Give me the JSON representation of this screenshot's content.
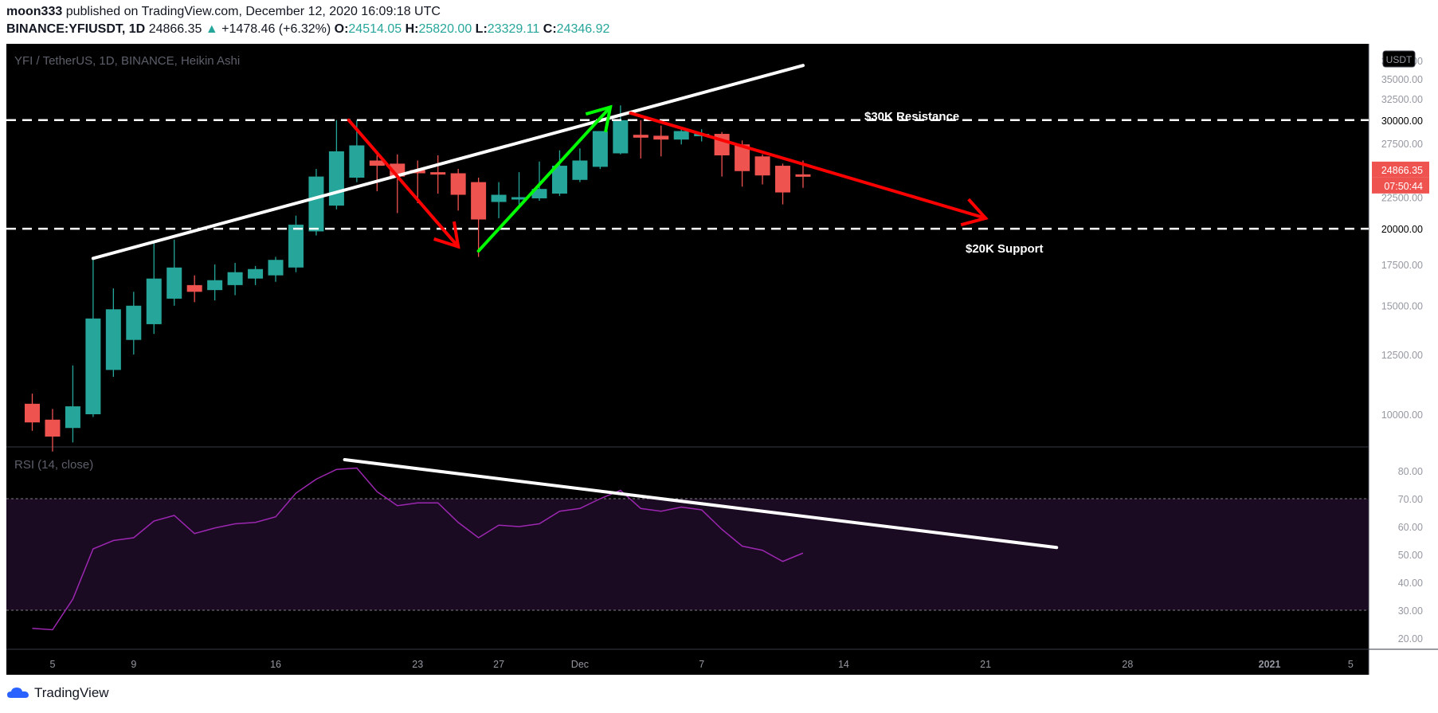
{
  "header": {
    "author": "moon333",
    "published_text": "published on TradingView.com, December 12, 2020 16:09:18 UTC",
    "symbol": "BINANCE:YFIUSDT, 1D",
    "last": "24866.35",
    "change": "+1478.46 (+6.32%)",
    "o_label": "O:",
    "o_val": "24514.05",
    "h_label": "H:",
    "h_val": "25820.00",
    "l_label": "L:",
    "l_val": "23329.11",
    "c_label": "C:",
    "c_val": "24346.92"
  },
  "footer": {
    "brand": "TradingView"
  },
  "colors": {
    "up": "#26a69a",
    "down": "#ef5350",
    "background": "#000000",
    "rsi_line": "#9c27b0",
    "rsi_band": "#1a0a22"
  },
  "chart_data": [
    {
      "type": "candlestick",
      "title": "YFI / TetherUS, 1D, BINANCE, Heikin Ashi",
      "currency_badge": "USDT",
      "y_scale": "log",
      "y_ticks": [
        "37500.00",
        "35000.00",
        "32500.00",
        "30000.00",
        "27500.00",
        "22500.00",
        "20000.00",
        "17500.00",
        "15000.00",
        "12500.00",
        "10000.00"
      ],
      "ylim": [
        8500,
        38000
      ],
      "last_price": "24866.35",
      "countdown": "07:50:44",
      "x_ticks": [
        {
          "day": 4,
          "label": "5"
        },
        {
          "day": 8,
          "label": "9"
        },
        {
          "day": 15,
          "label": "16"
        },
        {
          "day": 22,
          "label": "23"
        },
        {
          "day": 26,
          "label": "27"
        },
        {
          "day": 30,
          "label": "Dec"
        },
        {
          "day": 36,
          "label": "7"
        },
        {
          "day": 43,
          "label": "14"
        },
        {
          "day": 50,
          "label": "21"
        },
        {
          "day": 57,
          "label": "28"
        },
        {
          "day": 64,
          "label": "2021"
        },
        {
          "day": 68,
          "label": "5"
        }
      ],
      "candles": [
        {
          "day": 3,
          "o": 10400,
          "h": 10800,
          "l": 9400,
          "c": 9700
        },
        {
          "day": 4,
          "o": 9800,
          "h": 10200,
          "l": 8700,
          "c": 9200
        },
        {
          "day": 5,
          "o": 9500,
          "h": 12000,
          "l": 9000,
          "c": 10300
        },
        {
          "day": 6,
          "o": 10000,
          "h": 18000,
          "l": 9900,
          "c": 14300
        },
        {
          "day": 7,
          "o": 11800,
          "h": 16000,
          "l": 11500,
          "c": 14800
        },
        {
          "day": 8,
          "o": 13200,
          "h": 15800,
          "l": 12500,
          "c": 15000
        },
        {
          "day": 9,
          "o": 14000,
          "h": 19000,
          "l": 13500,
          "c": 16600
        },
        {
          "day": 10,
          "o": 15400,
          "h": 19200,
          "l": 15000,
          "c": 17300
        },
        {
          "day": 11,
          "o": 16200,
          "h": 16800,
          "l": 15200,
          "c": 15800
        },
        {
          "day": 12,
          "o": 15900,
          "h": 17500,
          "l": 15300,
          "c": 16500
        },
        {
          "day": 13,
          "o": 16200,
          "h": 17600,
          "l": 15600,
          "c": 17000
        },
        {
          "day": 14,
          "o": 16600,
          "h": 17400,
          "l": 16200,
          "c": 17200
        },
        {
          "day": 15,
          "o": 16800,
          "h": 18000,
          "l": 16400,
          "c": 17800
        },
        {
          "day": 16,
          "o": 17300,
          "h": 21000,
          "l": 17000,
          "c": 20300
        },
        {
          "day": 17,
          "o": 19800,
          "h": 25000,
          "l": 19500,
          "c": 24300
        },
        {
          "day": 18,
          "o": 21800,
          "h": 30000,
          "l": 21500,
          "c": 26700
        },
        {
          "day": 19,
          "o": 24200,
          "h": 30000,
          "l": 23800,
          "c": 27300
        },
        {
          "day": 20,
          "o": 25800,
          "h": 26500,
          "l": 23000,
          "c": 25300
        },
        {
          "day": 21,
          "o": 25500,
          "h": 26400,
          "l": 21200,
          "c": 24300
        },
        {
          "day": 22,
          "o": 24900,
          "h": 25800,
          "l": 22000,
          "c": 24600
        },
        {
          "day": 23,
          "o": 24700,
          "h": 26300,
          "l": 22800,
          "c": 24500
        },
        {
          "day": 24,
          "o": 24600,
          "h": 25000,
          "l": 21400,
          "c": 22700
        },
        {
          "day": 25,
          "o": 23800,
          "h": 24200,
          "l": 18000,
          "c": 20700
        },
        {
          "day": 26,
          "o": 22100,
          "h": 23800,
          "l": 20800,
          "c": 22700
        },
        {
          "day": 27,
          "o": 22300,
          "h": 24700,
          "l": 21900,
          "c": 22500
        },
        {
          "day": 28,
          "o": 22400,
          "h": 25700,
          "l": 22200,
          "c": 23200
        },
        {
          "day": 29,
          "o": 22800,
          "h": 26800,
          "l": 22600,
          "c": 25300
        },
        {
          "day": 30,
          "o": 24000,
          "h": 27000,
          "l": 23800,
          "c": 25800
        },
        {
          "day": 31,
          "o": 25200,
          "h": 28700,
          "l": 25000,
          "c": 28800
        },
        {
          "day": 32,
          "o": 26500,
          "h": 31700,
          "l": 26400,
          "c": 30000
        },
        {
          "day": 33,
          "o": 28400,
          "h": 30000,
          "l": 26000,
          "c": 28100
        },
        {
          "day": 34,
          "o": 28300,
          "h": 29400,
          "l": 26200,
          "c": 27900
        },
        {
          "day": 35,
          "o": 27900,
          "h": 29100,
          "l": 27400,
          "c": 28800
        },
        {
          "day": 36,
          "o": 28300,
          "h": 29000,
          "l": 27700,
          "c": 28500
        },
        {
          "day": 37,
          "o": 28500,
          "h": 28700,
          "l": 24300,
          "c": 26300
        },
        {
          "day": 38,
          "o": 27400,
          "h": 27800,
          "l": 23400,
          "c": 24800
        },
        {
          "day": 39,
          "o": 26200,
          "h": 26400,
          "l": 23600,
          "c": 24400
        },
        {
          "day": 40,
          "o": 25300,
          "h": 25500,
          "l": 21900,
          "c": 22900
        },
        {
          "day": 41,
          "o": 24500,
          "h": 25800,
          "l": 23300,
          "c": 24300
        }
      ],
      "drawings": [
        {
          "kind": "hline",
          "label": "$30K Resistance",
          "price": 30000,
          "color": "#ffffff",
          "dashed": true
        },
        {
          "kind": "hline",
          "label": "$20K Support",
          "price": 20000,
          "color": "#ffffff",
          "dashed": true
        },
        {
          "kind": "trend",
          "from": {
            "day": 6,
            "price": 17900
          },
          "to": {
            "day": 41,
            "price": 36800
          },
          "color": "#ffffff"
        },
        {
          "kind": "arrow",
          "from": {
            "day": 18.6,
            "price": 30000
          },
          "to": {
            "day": 24,
            "price": 18700
          },
          "color": "#ff0000"
        },
        {
          "kind": "arrow",
          "from": {
            "day": 25,
            "price": 18400
          },
          "to": {
            "day": 31.5,
            "price": 31500
          },
          "color": "#00ff00"
        },
        {
          "kind": "arrow",
          "from": {
            "day": 32.5,
            "price": 30800
          },
          "to": {
            "day": 50,
            "price": 20800
          },
          "color": "#ff0000"
        }
      ]
    },
    {
      "type": "line",
      "title": "RSI (14, close)",
      "ylim": [
        15,
        90
      ],
      "y_ticks": [
        "80.00",
        "70.00",
        "60.00",
        "50.00",
        "40.00",
        "30.00",
        "20.00"
      ],
      "bands": [
        30,
        70
      ],
      "series": [
        {
          "x": [
            3,
            4,
            5,
            6,
            7,
            8,
            9,
            10,
            11,
            12,
            13,
            14,
            15,
            16,
            17,
            18,
            19,
            20,
            21,
            22,
            23,
            24,
            25,
            26,
            27,
            28,
            29,
            30,
            31,
            32,
            33,
            34,
            35,
            36,
            37,
            38,
            39,
            40,
            41
          ],
          "values": [
            23.5,
            23,
            34,
            52,
            55,
            56,
            62,
            64,
            57.5,
            59.5,
            61,
            61.5,
            63.5,
            72,
            77,
            80.5,
            81,
            72.5,
            67.5,
            68.5,
            68.5,
            61.5,
            56,
            60.5,
            60,
            61,
            65.5,
            66.5,
            70,
            73,
            66.5,
            65.5,
            67,
            66,
            59,
            53,
            51.5,
            47.5,
            50.5
          ]
        }
      ],
      "drawings": [
        {
          "kind": "trend",
          "from": {
            "day": 18.4,
            "rsi": 84
          },
          "to": {
            "day": 53.5,
            "rsi": 52.5
          },
          "color": "#ffffff"
        }
      ]
    }
  ]
}
